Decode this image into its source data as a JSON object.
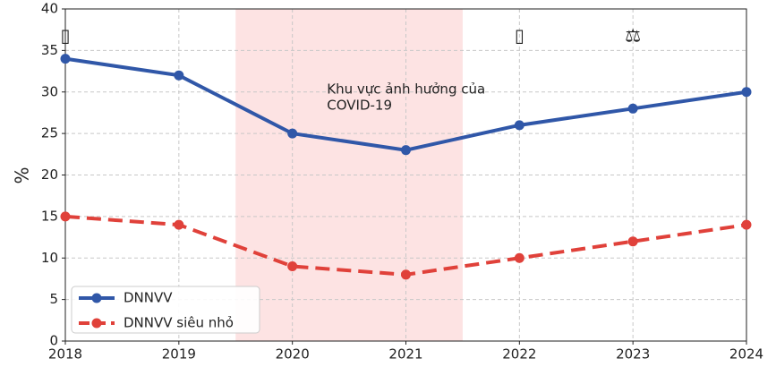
{
  "chart_data": {
    "type": "line",
    "y_label": "%",
    "x": [
      2018,
      2019,
      2020,
      2021,
      2022,
      2023,
      2024
    ],
    "xlim": [
      2018,
      2024
    ],
    "xticks": [
      2018,
      2019,
      2020,
      2021,
      2022,
      2023,
      2024
    ],
    "ylim": [
      0,
      40
    ],
    "yticks": [
      0,
      5,
      10,
      15,
      20,
      25,
      30,
      35,
      40
    ],
    "grid": true,
    "legend": "lower left",
    "series": [
      {
        "name": "DNNVV",
        "color": "#3057a8",
        "dash": "solid",
        "values": [
          34,
          32,
          25,
          23,
          26,
          28,
          30
        ]
      },
      {
        "name": "DNNVV siêu nhỏ",
        "color": "#e0413a",
        "dash": "dashed",
        "values": [
          15,
          14,
          9,
          8,
          10,
          12,
          14
        ]
      }
    ],
    "shaded_region": {
      "x": [
        2019.5,
        2021.5
      ],
      "color": "#fde3e3",
      "label_lines": [
        "Khu vực ảnh hưởng của",
        "COVID-19"
      ]
    },
    "icons": [
      {
        "x": 2018,
        "text": "▯"
      },
      {
        "x": 2022,
        "text": "▯"
      },
      {
        "x": 2023,
        "text": "⚖"
      }
    ]
  }
}
